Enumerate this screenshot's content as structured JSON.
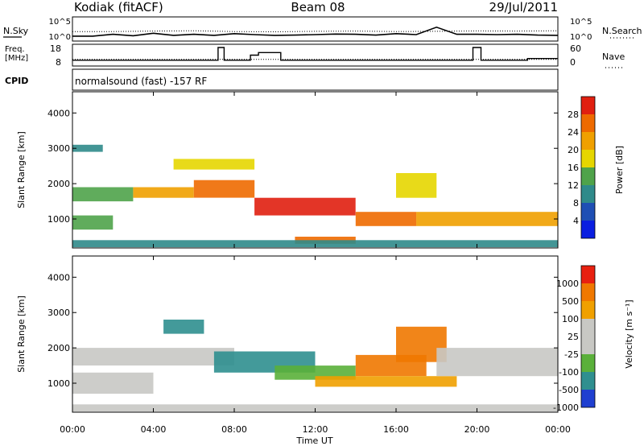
{
  "header": {
    "station": "Kodiak (fitACF)",
    "beam": "Beam 08",
    "date": "29/Jul/2011"
  },
  "noise_panel": {
    "left_label": "N.Sky",
    "left_ticks": [
      "10^5",
      "10^0"
    ],
    "right_label": "N.Search",
    "right_ticks": [
      "10^5",
      "10^0"
    ],
    "right_legend_style": "dotted"
  },
  "freq_panel": {
    "left_label_line1": "Freq.",
    "left_label_line2": "[MHz]",
    "left_ticks": [
      "18",
      "8"
    ],
    "right_label": "Nave",
    "right_ticks": [
      "60",
      "0"
    ],
    "right_legend_style": "dotted"
  },
  "cpid_panel": {
    "label": "CPID",
    "program": "normalsound (fast) -157 RF"
  },
  "power_panel": {
    "ylabel": "Slant Range [km]",
    "yticks": [
      "1000",
      "2000",
      "3000",
      "4000"
    ],
    "colorbar_label": "Power [dB]",
    "colorbar_ticks": [
      "4",
      "8",
      "12",
      "16",
      "20",
      "24",
      "28"
    ],
    "colors": [
      "#0a1ee0",
      "#1f4fb4",
      "#2f8a8a",
      "#4fa34a",
      "#e6d600",
      "#f0a000",
      "#ee6a00",
      "#e01f10"
    ]
  },
  "velocity_panel": {
    "ylabel": "Slant Range [km]",
    "yticks": [
      "1000",
      "2000",
      "3000",
      "4000"
    ],
    "colorbar_label": "Velocity [m s⁻¹]",
    "colorbar_ticks": [
      "1000",
      "500",
      "100",
      "25",
      "-25",
      "-100",
      "-500",
      "-1000"
    ],
    "colors": [
      "#1f3fd0",
      "#2f8f8f",
      "#5ab03a",
      "#c8c8c4",
      "#c8c8c4",
      "#f0a000",
      "#f07800",
      "#e82010"
    ],
    "ground_scatter_color": "#c8c8c4"
  },
  "x_axis": {
    "ticks": [
      "00:00",
      "04:00",
      "08:00",
      "12:00",
      "16:00",
      "20:00",
      "00:00"
    ],
    "label": "Time UT"
  },
  "chart_data": [
    {
      "type": "line",
      "title": "Noise levels",
      "x_unit": "hours UT",
      "xlim": [
        0,
        24
      ],
      "yscale": "log",
      "series": [
        {
          "name": "N.Sky",
          "style": "solid",
          "x": [
            0,
            1,
            2,
            3,
            4,
            5,
            6,
            7,
            8,
            9,
            10,
            11,
            12,
            13,
            14,
            15,
            16,
            17,
            18,
            19,
            20,
            21,
            22,
            23,
            24
          ],
          "y": [
            3,
            3,
            10,
            4,
            20,
            5,
            10,
            5,
            15,
            8,
            5,
            6,
            8,
            12,
            10,
            6,
            15,
            8,
            1000,
            10,
            10,
            8,
            10,
            6,
            5
          ]
        },
        {
          "name": "N.Search",
          "style": "dotted",
          "x": [
            0,
            2,
            4,
            6,
            8,
            10,
            12,
            14,
            16,
            18,
            20,
            22,
            24
          ],
          "y": [
            60,
            60,
            80,
            100,
            60,
            50,
            70,
            80,
            60,
            70,
            90,
            80,
            100
          ]
        }
      ]
    },
    {
      "type": "line",
      "title": "Frequency and Nave",
      "x_unit": "hours UT",
      "xlim": [
        0,
        24
      ],
      "series": [
        {
          "name": "Freq. [MHz]",
          "style": "solid",
          "ylim": [
            8,
            18
          ],
          "x": [
            0,
            7.2,
            7.2,
            7.5,
            7.5,
            8.8,
            8.8,
            9.2,
            9.2,
            10.3,
            10.3,
            19.8,
            19.8,
            20.2,
            20.2,
            22.5,
            22.5,
            24
          ],
          "y": [
            10,
            10,
            17.5,
            17.5,
            10,
            10,
            13,
            13,
            14.5,
            14.5,
            10,
            10,
            17.5,
            17.5,
            10,
            10,
            11,
            11
          ]
        },
        {
          "name": "Nave",
          "style": "dotted",
          "ylim": [
            0,
            60
          ],
          "x": [
            0,
            4,
            8,
            12,
            16,
            20,
            24
          ],
          "y": [
            15,
            15,
            15,
            15,
            15,
            15,
            15
          ]
        }
      ]
    },
    {
      "type": "heatmap",
      "title": "Power",
      "xlabel": "Time UT",
      "ylabel": "Slant Range [km]",
      "xlim": [
        0,
        24
      ],
      "ylim": [
        180,
        4600
      ],
      "z_label": "Power [dB]",
      "zlim": [
        0,
        32
      ],
      "features": [
        {
          "x": [
            0.0,
            1.5
          ],
          "y": [
            2900,
            3100
          ],
          "value": 8
        },
        {
          "x": [
            0.0,
            3.0
          ],
          "y": [
            1500,
            1900
          ],
          "value": 12
        },
        {
          "x": [
            3.0,
            6.0
          ],
          "y": [
            1600,
            1900
          ],
          "value": 20
        },
        {
          "x": [
            6.0,
            9.0
          ],
          "y": [
            1600,
            2100
          ],
          "value": 24
        },
        {
          "x": [
            9.0,
            14.0
          ],
          "y": [
            1100,
            1600
          ],
          "value": 28
        },
        {
          "x": [
            14.0,
            17.0
          ],
          "y": [
            800,
            1200
          ],
          "value": 24
        },
        {
          "x": [
            17.0,
            24.0
          ],
          "y": [
            800,
            1200
          ],
          "value": 20
        },
        {
          "x": [
            0.0,
            2.0
          ],
          "y": [
            700,
            1100
          ],
          "value": 12
        },
        {
          "x": [
            5.0,
            9.0
          ],
          "y": [
            2400,
            2700
          ],
          "value": 16
        },
        {
          "x": [
            16.0,
            18.0
          ],
          "y": [
            1600,
            2300
          ],
          "value": 16
        },
        {
          "x": [
            11.0,
            14.0
          ],
          "y": [
            300,
            500
          ],
          "value": 24
        },
        {
          "x": [
            0.0,
            24.0
          ],
          "y": [
            200,
            400
          ],
          "value": 8
        }
      ]
    },
    {
      "type": "heatmap",
      "title": "Velocity",
      "xlabel": "Time UT",
      "ylabel": "Slant Range [km]",
      "xlim": [
        0,
        24
      ],
      "ylim": [
        180,
        4600
      ],
      "z_label": "Velocity [m s⁻¹]",
      "zlim": [
        -1000,
        1000
      ],
      "features": [
        {
          "x": [
            0.0,
            8.0
          ],
          "y": [
            1500,
            2000
          ],
          "value": 0
        },
        {
          "x": [
            0.0,
            4.0
          ],
          "y": [
            700,
            1300
          ],
          "value": 0
        },
        {
          "x": [
            4.5,
            6.5
          ],
          "y": [
            2400,
            2800
          ],
          "value": 100
        },
        {
          "x": [
            7.0,
            12.0
          ],
          "y": [
            1300,
            1900
          ],
          "value": 100
        },
        {
          "x": [
            10.0,
            14.0
          ],
          "y": [
            1100,
            1500
          ],
          "value": 25
        },
        {
          "x": [
            14.0,
            17.5
          ],
          "y": [
            1200,
            1800
          ],
          "value": -300
        },
        {
          "x": [
            16.0,
            18.5
          ],
          "y": [
            1600,
            2600
          ],
          "value": -500
        },
        {
          "x": [
            12.0,
            19.0
          ],
          "y": [
            900,
            1200
          ],
          "value": -100
        },
        {
          "x": [
            18.0,
            24.0
          ],
          "y": [
            1200,
            2000
          ],
          "value": 0
        },
        {
          "x": [
            0.0,
            24.0
          ],
          "y": [
            200,
            400
          ],
          "value": 0
        }
      ]
    }
  ]
}
